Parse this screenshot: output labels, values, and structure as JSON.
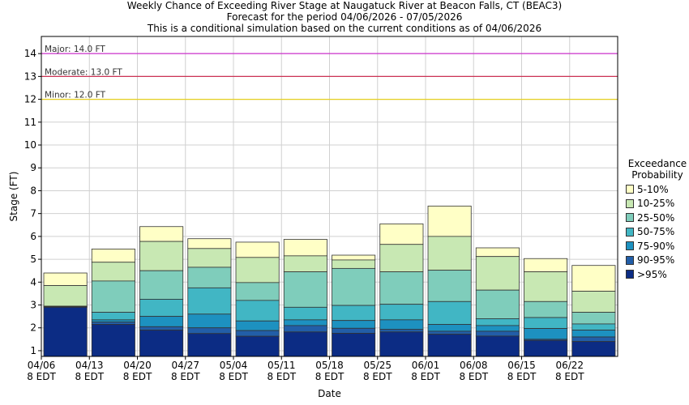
{
  "chart_data": {
    "type": "bar",
    "stacked": true,
    "title": "Weekly Chance of Exceeding River Stage at Naugatuck River at Beacon Falls, CT (BEAC3)",
    "subtitle1": "Forecast for the period 04/06/2026 - 07/05/2026",
    "subtitle2": "This is a conditional simulation based on the current conditions as of 04/06/2026",
    "xlabel": "Date",
    "ylabel": "Stage (FT)",
    "ylim": [
      0.75,
      14.75
    ],
    "yticks": [
      1,
      2,
      3,
      4,
      5,
      6,
      7,
      8,
      9,
      10,
      11,
      12,
      13,
      14
    ],
    "grid": true,
    "legend_position": "right",
    "xtick_labels": [
      [
        "04/06",
        "8 EDT"
      ],
      [
        "04/13",
        "8 EDT"
      ],
      [
        "04/20",
        "8 EDT"
      ],
      [
        "04/27",
        "8 EDT"
      ],
      [
        "05/04",
        "8 EDT"
      ],
      [
        "05/11",
        "8 EDT"
      ],
      [
        "05/18",
        "8 EDT"
      ],
      [
        "05/25",
        "8 EDT"
      ],
      [
        "06/01",
        "8 EDT"
      ],
      [
        "06/08",
        "8 EDT"
      ],
      [
        "06/15",
        "8 EDT"
      ],
      [
        "06/22",
        "8 EDT"
      ]
    ],
    "thresholds": [
      {
        "label": "Major: 14.0 FT",
        "value": 14.0,
        "color": "#cc33cc"
      },
      {
        "label": "Moderate: 13.0 FT",
        "value": 13.0,
        "color": "#cc3355"
      },
      {
        "label": "Minor: 12.0 FT",
        "value": 12.0,
        "color": "#e6d020"
      }
    ],
    "legend_title": [
      "Exceedance",
      "Probability"
    ],
    "series": [
      {
        "name": "5-10%",
        "color": "#ffffc6"
      },
      {
        "name": "10-25%",
        "color": "#c8e8b3"
      },
      {
        "name": "25-50%",
        "color": "#7fcdbb"
      },
      {
        "name": "50-75%",
        "color": "#41b6c4"
      },
      {
        "name": "75-90%",
        "color": "#1d91c0"
      },
      {
        "name": "90-95%",
        "color": "#225ea8"
      },
      {
        "name": ">95%",
        "color": "#0c2c84"
      }
    ],
    "weeks": [
      {
        "bottom": 0.75,
        "bounds": [
          4.4,
          3.85,
          2.95,
          2.93,
          2.92,
          2.91,
          2.9
        ]
      },
      {
        "bottom": 0.75,
        "bounds": [
          5.45,
          4.87,
          4.05,
          2.68,
          2.35,
          2.25,
          2.15
        ]
      },
      {
        "bottom": 0.75,
        "bounds": [
          6.43,
          5.78,
          4.5,
          3.25,
          2.5,
          2.05,
          1.9
        ]
      },
      {
        "bottom": 0.75,
        "bounds": [
          5.9,
          5.47,
          4.65,
          3.75,
          2.6,
          2.0,
          1.75
        ]
      },
      {
        "bottom": 0.75,
        "bounds": [
          5.75,
          5.08,
          3.98,
          3.2,
          2.3,
          1.88,
          1.63
        ]
      },
      {
        "bottom": 0.75,
        "bounds": [
          5.87,
          5.15,
          4.45,
          2.9,
          2.35,
          2.1,
          1.82
        ]
      },
      {
        "bottom": 0.75,
        "bounds": [
          5.18,
          4.97,
          4.6,
          2.98,
          2.32,
          1.98,
          1.76
        ]
      },
      {
        "bottom": 0.75,
        "bounds": [
          6.55,
          5.65,
          4.45,
          3.03,
          2.35,
          1.93,
          1.82
        ]
      },
      {
        "bottom": 0.75,
        "bounds": [
          7.33,
          6.0,
          4.52,
          3.15,
          2.15,
          1.85,
          1.72
        ]
      },
      {
        "bottom": 0.75,
        "bounds": [
          5.5,
          5.12,
          3.65,
          2.4,
          2.1,
          1.85,
          1.64
        ]
      },
      {
        "bottom": 0.75,
        "bounds": [
          5.03,
          4.45,
          3.15,
          2.45,
          1.97,
          1.5,
          1.45
        ]
      },
      {
        "bottom": 0.75,
        "bounds": [
          4.73,
          3.6,
          2.68,
          2.17,
          1.9,
          1.6,
          1.4
        ]
      }
    ]
  }
}
